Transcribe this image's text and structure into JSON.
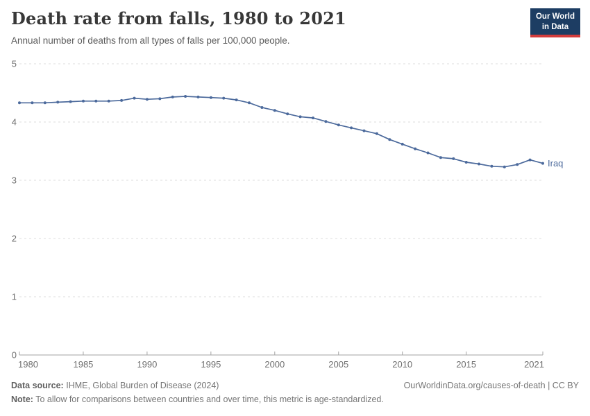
{
  "header": {
    "logo": {
      "line1": "Our World",
      "line2": "in Data"
    }
  },
  "footer": {
    "datasource_label": "Data source:",
    "datasource_text": "IHME, Global Burden of Disease (2024)",
    "note_label": "Note:",
    "note_text": "To allow for comparisons between countries and over time, this metric is age-standardized.",
    "credit": "OurWorldinData.org/causes-of-death | CC BY"
  },
  "colors": {
    "line": "#4C6A9C",
    "logo_bg": "#1d3d63",
    "logo_red": "#d33c3c",
    "grid": "#dcdcdc",
    "axis": "#a3a3a3",
    "tick_text": "#6e6e6e"
  },
  "chart_data": {
    "type": "line",
    "title": "Death rate from falls, 1980 to 2021",
    "subtitle": "Annual number of deaths from all types of falls per 100,000 people.",
    "xlabel": "",
    "ylabel": "",
    "xlim": [
      1980,
      2021
    ],
    "ylim": [
      0,
      5
    ],
    "x_ticks": [
      1980,
      1985,
      1990,
      1995,
      2000,
      2005,
      2010,
      2015,
      2021
    ],
    "y_ticks": [
      0,
      1,
      2,
      3,
      4,
      5
    ],
    "grid": "horizontal-dashed",
    "legend_position": "end-of-line-label",
    "line_color": "#4C6A9C",
    "series": [
      {
        "name": "Iraq",
        "x": [
          1980,
          1981,
          1982,
          1983,
          1984,
          1985,
          1986,
          1987,
          1988,
          1989,
          1990,
          1991,
          1992,
          1993,
          1994,
          1995,
          1996,
          1997,
          1998,
          1999,
          2000,
          2001,
          2002,
          2003,
          2004,
          2005,
          2006,
          2007,
          2008,
          2009,
          2010,
          2011,
          2012,
          2013,
          2014,
          2015,
          2016,
          2017,
          2018,
          2019,
          2020,
          2021
        ],
        "values": [
          4.33,
          4.33,
          4.33,
          4.34,
          4.35,
          4.36,
          4.36,
          4.36,
          4.37,
          4.41,
          4.39,
          4.4,
          4.43,
          4.44,
          4.43,
          4.42,
          4.41,
          4.38,
          4.33,
          4.25,
          4.2,
          4.14,
          4.09,
          4.07,
          4.01,
          3.95,
          3.9,
          3.85,
          3.8,
          3.7,
          3.62,
          3.54,
          3.47,
          3.39,
          3.37,
          3.31,
          3.28,
          3.24,
          3.23,
          3.27,
          3.35,
          3.29
        ]
      }
    ]
  }
}
